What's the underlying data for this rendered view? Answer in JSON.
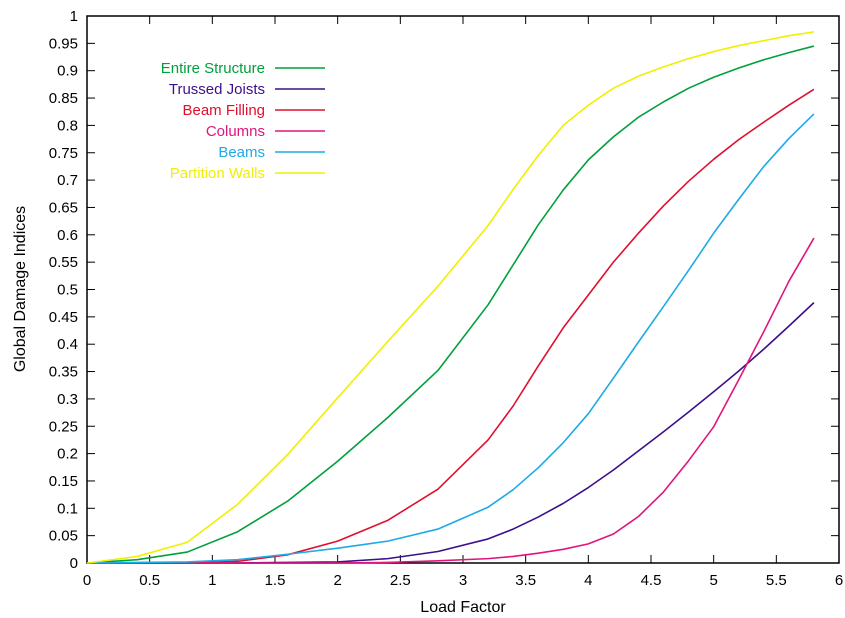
{
  "chart_data": {
    "type": "line",
    "title": "",
    "xlabel": "Load Factor",
    "ylabel": "Global Damage Indices",
    "xlim": [
      0,
      6
    ],
    "ylim": [
      0,
      1
    ],
    "xticks": [
      "0",
      "0.5",
      "1",
      "1.5",
      "2",
      "2.5",
      "3",
      "3.5",
      "4",
      "4.5",
      "5",
      "5.5",
      "6"
    ],
    "yticks": [
      "0",
      "0.05",
      "0.1",
      "0.15",
      "0.2",
      "0.25",
      "0.3",
      "0.35",
      "0.4",
      "0.45",
      "0.5",
      "0.55",
      "0.6",
      "0.65",
      "0.7",
      "0.75",
      "0.8",
      "0.85",
      "0.9",
      "0.95",
      "1"
    ],
    "grid": false,
    "legend_position": "top-left",
    "x": [
      0,
      0.4,
      0.8,
      1.2,
      1.6,
      2.0,
      2.4,
      2.8,
      3.2,
      3.4,
      3.6,
      3.8,
      4.0,
      4.2,
      4.4,
      4.6,
      4.8,
      5.0,
      5.2,
      5.4,
      5.6,
      5.8
    ],
    "series": [
      {
        "name": "Entire Structure",
        "color": "#00a03c",
        "values": [
          0,
          0.006,
          0.02,
          0.057,
          0.113,
          0.186,
          0.266,
          0.352,
          0.472,
          0.545,
          0.618,
          0.682,
          0.737,
          0.779,
          0.815,
          0.843,
          0.868,
          0.888,
          0.905,
          0.92,
          0.933,
          0.945
        ]
      },
      {
        "name": "Trussed Joists",
        "color": "#3c0f8c",
        "values": [
          0,
          0,
          0,
          0,
          0.001,
          0.002,
          0.008,
          0.021,
          0.044,
          0.062,
          0.084,
          0.109,
          0.138,
          0.17,
          0.205,
          0.24,
          0.276,
          0.313,
          0.351,
          0.391,
          0.433,
          0.476
        ]
      },
      {
        "name": "Beam Filling",
        "color": "#e0102d",
        "values": [
          0,
          0,
          0,
          0.003,
          0.015,
          0.04,
          0.078,
          0.135,
          0.225,
          0.287,
          0.36,
          0.43,
          0.49,
          0.55,
          0.603,
          0.653,
          0.698,
          0.738,
          0.774,
          0.806,
          0.837,
          0.866
        ]
      },
      {
        "name": "Columns",
        "color": "#e0157d",
        "values": [
          0,
          0,
          0,
          0,
          0,
          0,
          0.001,
          0.004,
          0.008,
          0.012,
          0.018,
          0.025,
          0.035,
          0.053,
          0.085,
          0.13,
          0.187,
          0.249,
          0.335,
          0.423,
          0.515,
          0.594
        ]
      },
      {
        "name": "Beams",
        "color": "#1eaae6",
        "values": [
          0,
          0.001,
          0.002,
          0.006,
          0.016,
          0.027,
          0.04,
          0.062,
          0.102,
          0.134,
          0.174,
          0.22,
          0.273,
          0.338,
          0.404,
          0.469,
          0.535,
          0.603,
          0.665,
          0.725,
          0.776,
          0.821
        ]
      },
      {
        "name": "Partition Walls",
        "color": "#f0f000",
        "values": [
          0,
          0.012,
          0.038,
          0.107,
          0.198,
          0.302,
          0.405,
          0.506,
          0.617,
          0.683,
          0.745,
          0.8,
          0.837,
          0.868,
          0.89,
          0.907,
          0.922,
          0.935,
          0.946,
          0.955,
          0.964,
          0.971
        ]
      }
    ]
  }
}
